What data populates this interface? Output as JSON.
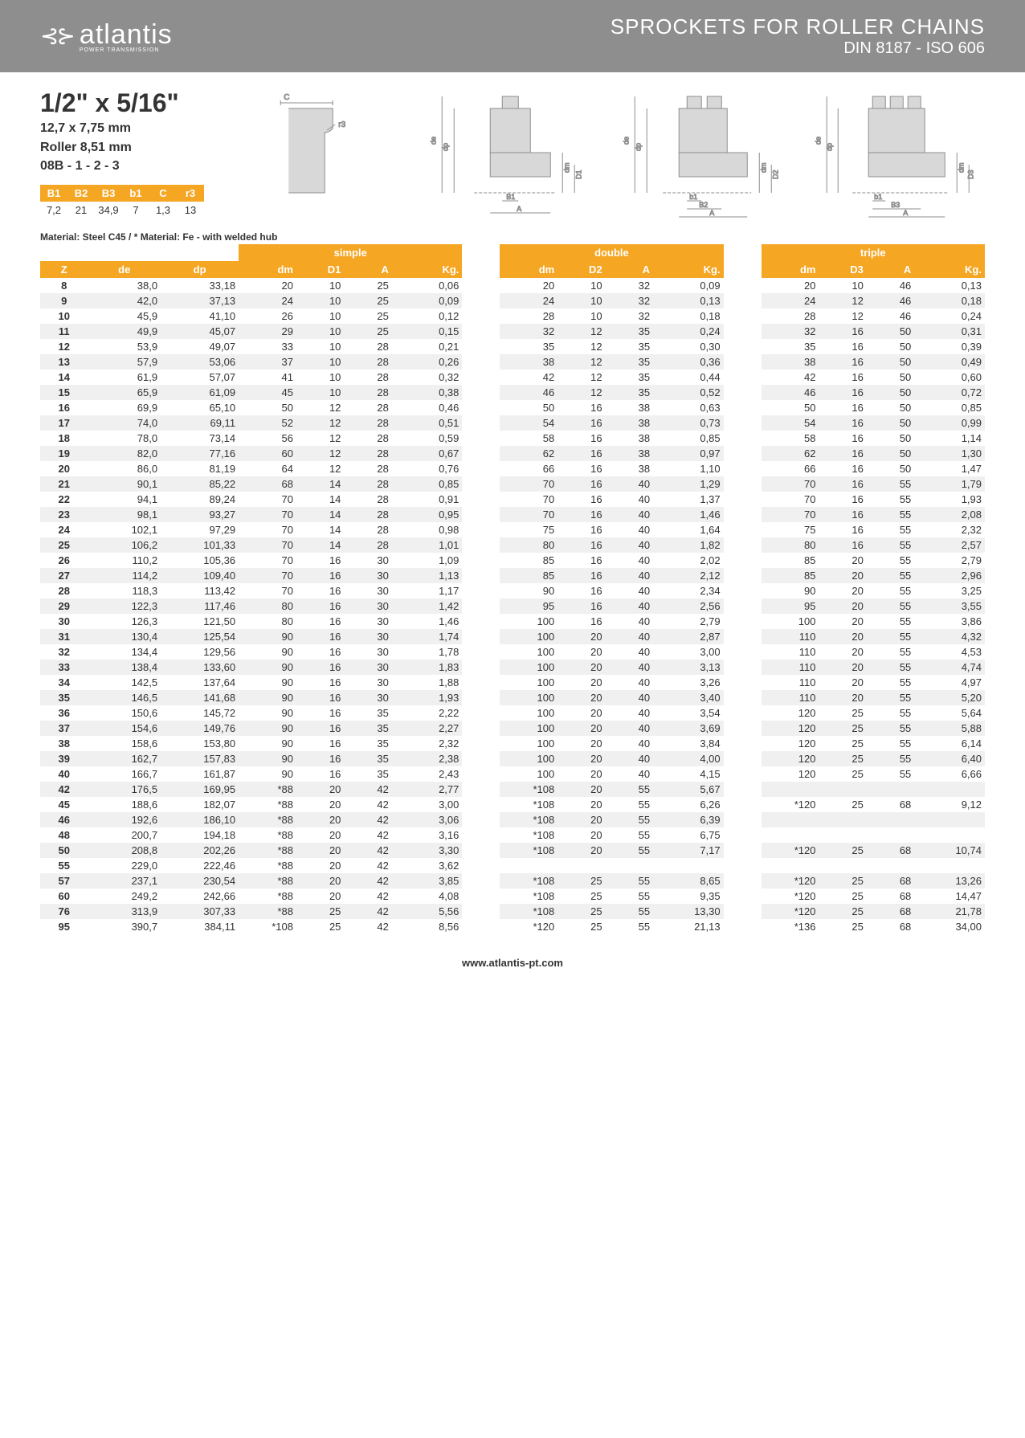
{
  "header": {
    "logo_text": "atlantis",
    "logo_sub": "POWER TRANSMISSION",
    "title1": "SPROCKETS FOR ROLLER CHAINS",
    "title2": "DIN 8187 - ISO 606"
  },
  "spec": {
    "size": "1/2\" x 5/16\"",
    "mm": "12,7 x 7,75 mm",
    "roller": "Roller 8,51 mm",
    "code": "08B - 1 - 2 - 3"
  },
  "b_table": {
    "headers": [
      "B1",
      "B2",
      "B3",
      "b1",
      "C",
      "r3"
    ],
    "values": [
      "7,2",
      "21",
      "34,9",
      "7",
      "1,3",
      "13"
    ]
  },
  "material": "Material: Steel C45 / * Material: Fe - with welded hub",
  "diag_labels": {
    "C": "C",
    "r3": "r3",
    "de": "de",
    "dp": "dp",
    "dm": "dm",
    "D1": "D1",
    "D2": "D2",
    "D3": "D3",
    "B1": "B1",
    "B2": "B2",
    "B3": "B3",
    "b1": "b1",
    "A": "A"
  },
  "table": {
    "sections": [
      "simple",
      "double",
      "triple"
    ],
    "col_labels": {
      "Z": "Z",
      "de": "de",
      "dp": "dp",
      "dm": "dm",
      "D1": "D1",
      "D2": "D2",
      "D3": "D3",
      "A": "A",
      "Kg": "Kg."
    },
    "rows": [
      {
        "Z": "8",
        "de": "38,0",
        "dp": "33,18",
        "s": {
          "dm": "20",
          "D": "10",
          "A": "25",
          "Kg": "0,06"
        },
        "d": {
          "dm": "20",
          "D": "10",
          "A": "32",
          "Kg": "0,09"
        },
        "t": {
          "dm": "20",
          "D": "10",
          "A": "46",
          "Kg": "0,13"
        }
      },
      {
        "Z": "9",
        "de": "42,0",
        "dp": "37,13",
        "s": {
          "dm": "24",
          "D": "10",
          "A": "25",
          "Kg": "0,09"
        },
        "d": {
          "dm": "24",
          "D": "10",
          "A": "32",
          "Kg": "0,13"
        },
        "t": {
          "dm": "24",
          "D": "12",
          "A": "46",
          "Kg": "0,18"
        }
      },
      {
        "Z": "10",
        "de": "45,9",
        "dp": "41,10",
        "s": {
          "dm": "26",
          "D": "10",
          "A": "25",
          "Kg": "0,12"
        },
        "d": {
          "dm": "28",
          "D": "10",
          "A": "32",
          "Kg": "0,18"
        },
        "t": {
          "dm": "28",
          "D": "12",
          "A": "46",
          "Kg": "0,24"
        }
      },
      {
        "Z": "11",
        "de": "49,9",
        "dp": "45,07",
        "s": {
          "dm": "29",
          "D": "10",
          "A": "25",
          "Kg": "0,15"
        },
        "d": {
          "dm": "32",
          "D": "12",
          "A": "35",
          "Kg": "0,24"
        },
        "t": {
          "dm": "32",
          "D": "16",
          "A": "50",
          "Kg": "0,31"
        }
      },
      {
        "Z": "12",
        "de": "53,9",
        "dp": "49,07",
        "s": {
          "dm": "33",
          "D": "10",
          "A": "28",
          "Kg": "0,21"
        },
        "d": {
          "dm": "35",
          "D": "12",
          "A": "35",
          "Kg": "0,30"
        },
        "t": {
          "dm": "35",
          "D": "16",
          "A": "50",
          "Kg": "0,39"
        }
      },
      {
        "Z": "13",
        "de": "57,9",
        "dp": "53,06",
        "s": {
          "dm": "37",
          "D": "10",
          "A": "28",
          "Kg": "0,26"
        },
        "d": {
          "dm": "38",
          "D": "12",
          "A": "35",
          "Kg": "0,36"
        },
        "t": {
          "dm": "38",
          "D": "16",
          "A": "50",
          "Kg": "0,49"
        }
      },
      {
        "Z": "14",
        "de": "61,9",
        "dp": "57,07",
        "s": {
          "dm": "41",
          "D": "10",
          "A": "28",
          "Kg": "0,32"
        },
        "d": {
          "dm": "42",
          "D": "12",
          "A": "35",
          "Kg": "0,44"
        },
        "t": {
          "dm": "42",
          "D": "16",
          "A": "50",
          "Kg": "0,60"
        }
      },
      {
        "Z": "15",
        "de": "65,9",
        "dp": "61,09",
        "s": {
          "dm": "45",
          "D": "10",
          "A": "28",
          "Kg": "0,38"
        },
        "d": {
          "dm": "46",
          "D": "12",
          "A": "35",
          "Kg": "0,52"
        },
        "t": {
          "dm": "46",
          "D": "16",
          "A": "50",
          "Kg": "0,72"
        }
      },
      {
        "Z": "16",
        "de": "69,9",
        "dp": "65,10",
        "s": {
          "dm": "50",
          "D": "12",
          "A": "28",
          "Kg": "0,46"
        },
        "d": {
          "dm": "50",
          "D": "16",
          "A": "38",
          "Kg": "0,63"
        },
        "t": {
          "dm": "50",
          "D": "16",
          "A": "50",
          "Kg": "0,85"
        }
      },
      {
        "Z": "17",
        "de": "74,0",
        "dp": "69,11",
        "s": {
          "dm": "52",
          "D": "12",
          "A": "28",
          "Kg": "0,51"
        },
        "d": {
          "dm": "54",
          "D": "16",
          "A": "38",
          "Kg": "0,73"
        },
        "t": {
          "dm": "54",
          "D": "16",
          "A": "50",
          "Kg": "0,99"
        }
      },
      {
        "Z": "18",
        "de": "78,0",
        "dp": "73,14",
        "s": {
          "dm": "56",
          "D": "12",
          "A": "28",
          "Kg": "0,59"
        },
        "d": {
          "dm": "58",
          "D": "16",
          "A": "38",
          "Kg": "0,85"
        },
        "t": {
          "dm": "58",
          "D": "16",
          "A": "50",
          "Kg": "1,14"
        }
      },
      {
        "Z": "19",
        "de": "82,0",
        "dp": "77,16",
        "s": {
          "dm": "60",
          "D": "12",
          "A": "28",
          "Kg": "0,67"
        },
        "d": {
          "dm": "62",
          "D": "16",
          "A": "38",
          "Kg": "0,97"
        },
        "t": {
          "dm": "62",
          "D": "16",
          "A": "50",
          "Kg": "1,30"
        }
      },
      {
        "Z": "20",
        "de": "86,0",
        "dp": "81,19",
        "s": {
          "dm": "64",
          "D": "12",
          "A": "28",
          "Kg": "0,76"
        },
        "d": {
          "dm": "66",
          "D": "16",
          "A": "38",
          "Kg": "1,10"
        },
        "t": {
          "dm": "66",
          "D": "16",
          "A": "50",
          "Kg": "1,47"
        }
      },
      {
        "Z": "21",
        "de": "90,1",
        "dp": "85,22",
        "s": {
          "dm": "68",
          "D": "14",
          "A": "28",
          "Kg": "0,85"
        },
        "d": {
          "dm": "70",
          "D": "16",
          "A": "40",
          "Kg": "1,29"
        },
        "t": {
          "dm": "70",
          "D": "16",
          "A": "55",
          "Kg": "1,79"
        }
      },
      {
        "Z": "22",
        "de": "94,1",
        "dp": "89,24",
        "s": {
          "dm": "70",
          "D": "14",
          "A": "28",
          "Kg": "0,91"
        },
        "d": {
          "dm": "70",
          "D": "16",
          "A": "40",
          "Kg": "1,37"
        },
        "t": {
          "dm": "70",
          "D": "16",
          "A": "55",
          "Kg": "1,93"
        }
      },
      {
        "Z": "23",
        "de": "98,1",
        "dp": "93,27",
        "s": {
          "dm": "70",
          "D": "14",
          "A": "28",
          "Kg": "0,95"
        },
        "d": {
          "dm": "70",
          "D": "16",
          "A": "40",
          "Kg": "1,46"
        },
        "t": {
          "dm": "70",
          "D": "16",
          "A": "55",
          "Kg": "2,08"
        }
      },
      {
        "Z": "24",
        "de": "102,1",
        "dp": "97,29",
        "s": {
          "dm": "70",
          "D": "14",
          "A": "28",
          "Kg": "0,98"
        },
        "d": {
          "dm": "75",
          "D": "16",
          "A": "40",
          "Kg": "1,64"
        },
        "t": {
          "dm": "75",
          "D": "16",
          "A": "55",
          "Kg": "2,32"
        }
      },
      {
        "Z": "25",
        "de": "106,2",
        "dp": "101,33",
        "s": {
          "dm": "70",
          "D": "14",
          "A": "28",
          "Kg": "1,01"
        },
        "d": {
          "dm": "80",
          "D": "16",
          "A": "40",
          "Kg": "1,82"
        },
        "t": {
          "dm": "80",
          "D": "16",
          "A": "55",
          "Kg": "2,57"
        }
      },
      {
        "Z": "26",
        "de": "110,2",
        "dp": "105,36",
        "s": {
          "dm": "70",
          "D": "16",
          "A": "30",
          "Kg": "1,09"
        },
        "d": {
          "dm": "85",
          "D": "16",
          "A": "40",
          "Kg": "2,02"
        },
        "t": {
          "dm": "85",
          "D": "20",
          "A": "55",
          "Kg": "2,79"
        }
      },
      {
        "Z": "27",
        "de": "114,2",
        "dp": "109,40",
        "s": {
          "dm": "70",
          "D": "16",
          "A": "30",
          "Kg": "1,13"
        },
        "d": {
          "dm": "85",
          "D": "16",
          "A": "40",
          "Kg": "2,12"
        },
        "t": {
          "dm": "85",
          "D": "20",
          "A": "55",
          "Kg": "2,96"
        }
      },
      {
        "Z": "28",
        "de": "118,3",
        "dp": "113,42",
        "s": {
          "dm": "70",
          "D": "16",
          "A": "30",
          "Kg": "1,17"
        },
        "d": {
          "dm": "90",
          "D": "16",
          "A": "40",
          "Kg": "2,34"
        },
        "t": {
          "dm": "90",
          "D": "20",
          "A": "55",
          "Kg": "3,25"
        }
      },
      {
        "Z": "29",
        "de": "122,3",
        "dp": "117,46",
        "s": {
          "dm": "80",
          "D": "16",
          "A": "30",
          "Kg": "1,42"
        },
        "d": {
          "dm": "95",
          "D": "16",
          "A": "40",
          "Kg": "2,56"
        },
        "t": {
          "dm": "95",
          "D": "20",
          "A": "55",
          "Kg": "3,55"
        }
      },
      {
        "Z": "30",
        "de": "126,3",
        "dp": "121,50",
        "s": {
          "dm": "80",
          "D": "16",
          "A": "30",
          "Kg": "1,46"
        },
        "d": {
          "dm": "100",
          "D": "16",
          "A": "40",
          "Kg": "2,79"
        },
        "t": {
          "dm": "100",
          "D": "20",
          "A": "55",
          "Kg": "3,86"
        }
      },
      {
        "Z": "31",
        "de": "130,4",
        "dp": "125,54",
        "s": {
          "dm": "90",
          "D": "16",
          "A": "30",
          "Kg": "1,74"
        },
        "d": {
          "dm": "100",
          "D": "20",
          "A": "40",
          "Kg": "2,87"
        },
        "t": {
          "dm": "110",
          "D": "20",
          "A": "55",
          "Kg": "4,32"
        }
      },
      {
        "Z": "32",
        "de": "134,4",
        "dp": "129,56",
        "s": {
          "dm": "90",
          "D": "16",
          "A": "30",
          "Kg": "1,78"
        },
        "d": {
          "dm": "100",
          "D": "20",
          "A": "40",
          "Kg": "3,00"
        },
        "t": {
          "dm": "110",
          "D": "20",
          "A": "55",
          "Kg": "4,53"
        }
      },
      {
        "Z": "33",
        "de": "138,4",
        "dp": "133,60",
        "s": {
          "dm": "90",
          "D": "16",
          "A": "30",
          "Kg": "1,83"
        },
        "d": {
          "dm": "100",
          "D": "20",
          "A": "40",
          "Kg": "3,13"
        },
        "t": {
          "dm": "110",
          "D": "20",
          "A": "55",
          "Kg": "4,74"
        }
      },
      {
        "Z": "34",
        "de": "142,5",
        "dp": "137,64",
        "s": {
          "dm": "90",
          "D": "16",
          "A": "30",
          "Kg": "1,88"
        },
        "d": {
          "dm": "100",
          "D": "20",
          "A": "40",
          "Kg": "3,26"
        },
        "t": {
          "dm": "110",
          "D": "20",
          "A": "55",
          "Kg": "4,97"
        }
      },
      {
        "Z": "35",
        "de": "146,5",
        "dp": "141,68",
        "s": {
          "dm": "90",
          "D": "16",
          "A": "30",
          "Kg": "1,93"
        },
        "d": {
          "dm": "100",
          "D": "20",
          "A": "40",
          "Kg": "3,40"
        },
        "t": {
          "dm": "110",
          "D": "20",
          "A": "55",
          "Kg": "5,20"
        }
      },
      {
        "Z": "36",
        "de": "150,6",
        "dp": "145,72",
        "s": {
          "dm": "90",
          "D": "16",
          "A": "35",
          "Kg": "2,22"
        },
        "d": {
          "dm": "100",
          "D": "20",
          "A": "40",
          "Kg": "3,54"
        },
        "t": {
          "dm": "120",
          "D": "25",
          "A": "55",
          "Kg": "5,64"
        }
      },
      {
        "Z": "37",
        "de": "154,6",
        "dp": "149,76",
        "s": {
          "dm": "90",
          "D": "16",
          "A": "35",
          "Kg": "2,27"
        },
        "d": {
          "dm": "100",
          "D": "20",
          "A": "40",
          "Kg": "3,69"
        },
        "t": {
          "dm": "120",
          "D": "25",
          "A": "55",
          "Kg": "5,88"
        }
      },
      {
        "Z": "38",
        "de": "158,6",
        "dp": "153,80",
        "s": {
          "dm": "90",
          "D": "16",
          "A": "35",
          "Kg": "2,32"
        },
        "d": {
          "dm": "100",
          "D": "20",
          "A": "40",
          "Kg": "3,84"
        },
        "t": {
          "dm": "120",
          "D": "25",
          "A": "55",
          "Kg": "6,14"
        }
      },
      {
        "Z": "39",
        "de": "162,7",
        "dp": "157,83",
        "s": {
          "dm": "90",
          "D": "16",
          "A": "35",
          "Kg": "2,38"
        },
        "d": {
          "dm": "100",
          "D": "20",
          "A": "40",
          "Kg": "4,00"
        },
        "t": {
          "dm": "120",
          "D": "25",
          "A": "55",
          "Kg": "6,40"
        }
      },
      {
        "Z": "40",
        "de": "166,7",
        "dp": "161,87",
        "s": {
          "dm": "90",
          "D": "16",
          "A": "35",
          "Kg": "2,43"
        },
        "d": {
          "dm": "100",
          "D": "20",
          "A": "40",
          "Kg": "4,15"
        },
        "t": {
          "dm": "120",
          "D": "25",
          "A": "55",
          "Kg": "6,66"
        }
      },
      {
        "Z": "42",
        "de": "176,5",
        "dp": "169,95",
        "s": {
          "dm": "*88",
          "D": "20",
          "A": "42",
          "Kg": "2,77"
        },
        "d": {
          "dm": "*108",
          "D": "20",
          "A": "55",
          "Kg": "5,67"
        },
        "t": {
          "dm": "",
          "D": "",
          "A": "",
          "Kg": ""
        }
      },
      {
        "Z": "45",
        "de": "188,6",
        "dp": "182,07",
        "s": {
          "dm": "*88",
          "D": "20",
          "A": "42",
          "Kg": "3,00"
        },
        "d": {
          "dm": "*108",
          "D": "20",
          "A": "55",
          "Kg": "6,26"
        },
        "t": {
          "dm": "*120",
          "D": "25",
          "A": "68",
          "Kg": "9,12"
        }
      },
      {
        "Z": "46",
        "de": "192,6",
        "dp": "186,10",
        "s": {
          "dm": "*88",
          "D": "20",
          "A": "42",
          "Kg": "3,06"
        },
        "d": {
          "dm": "*108",
          "D": "20",
          "A": "55",
          "Kg": "6,39"
        },
        "t": {
          "dm": "",
          "D": "",
          "A": "",
          "Kg": ""
        }
      },
      {
        "Z": "48",
        "de": "200,7",
        "dp": "194,18",
        "s": {
          "dm": "*88",
          "D": "20",
          "A": "42",
          "Kg": "3,16"
        },
        "d": {
          "dm": "*108",
          "D": "20",
          "A": "55",
          "Kg": "6,75"
        },
        "t": {
          "dm": "",
          "D": "",
          "A": "",
          "Kg": ""
        }
      },
      {
        "Z": "50",
        "de": "208,8",
        "dp": "202,26",
        "s": {
          "dm": "*88",
          "D": "20",
          "A": "42",
          "Kg": "3,30"
        },
        "d": {
          "dm": "*108",
          "D": "20",
          "A": "55",
          "Kg": "7,17"
        },
        "t": {
          "dm": "*120",
          "D": "25",
          "A": "68",
          "Kg": "10,74"
        }
      },
      {
        "Z": "55",
        "de": "229,0",
        "dp": "222,46",
        "s": {
          "dm": "*88",
          "D": "20",
          "A": "42",
          "Kg": "3,62"
        },
        "d": {
          "dm": "",
          "D": "",
          "A": "",
          "Kg": ""
        },
        "t": {
          "dm": "",
          "D": "",
          "A": "",
          "Kg": ""
        }
      },
      {
        "Z": "57",
        "de": "237,1",
        "dp": "230,54",
        "s": {
          "dm": "*88",
          "D": "20",
          "A": "42",
          "Kg": "3,85"
        },
        "d": {
          "dm": "*108",
          "D": "25",
          "A": "55",
          "Kg": "8,65"
        },
        "t": {
          "dm": "*120",
          "D": "25",
          "A": "68",
          "Kg": "13,26"
        }
      },
      {
        "Z": "60",
        "de": "249,2",
        "dp": "242,66",
        "s": {
          "dm": "*88",
          "D": "20",
          "A": "42",
          "Kg": "4,08"
        },
        "d": {
          "dm": "*108",
          "D": "25",
          "A": "55",
          "Kg": "9,35"
        },
        "t": {
          "dm": "*120",
          "D": "25",
          "A": "68",
          "Kg": "14,47"
        }
      },
      {
        "Z": "76",
        "de": "313,9",
        "dp": "307,33",
        "s": {
          "dm": "*88",
          "D": "25",
          "A": "42",
          "Kg": "5,56"
        },
        "d": {
          "dm": "*108",
          "D": "25",
          "A": "55",
          "Kg": "13,30"
        },
        "t": {
          "dm": "*120",
          "D": "25",
          "A": "68",
          "Kg": "21,78"
        }
      },
      {
        "Z": "95",
        "de": "390,7",
        "dp": "384,11",
        "s": {
          "dm": "*108",
          "D": "25",
          "A": "42",
          "Kg": "8,56"
        },
        "d": {
          "dm": "*120",
          "D": "25",
          "A": "55",
          "Kg": "21,13"
        },
        "t": {
          "dm": "*136",
          "D": "25",
          "A": "68",
          "Kg": "34,00"
        }
      }
    ]
  },
  "footer": "www.atlantis-pt.com"
}
